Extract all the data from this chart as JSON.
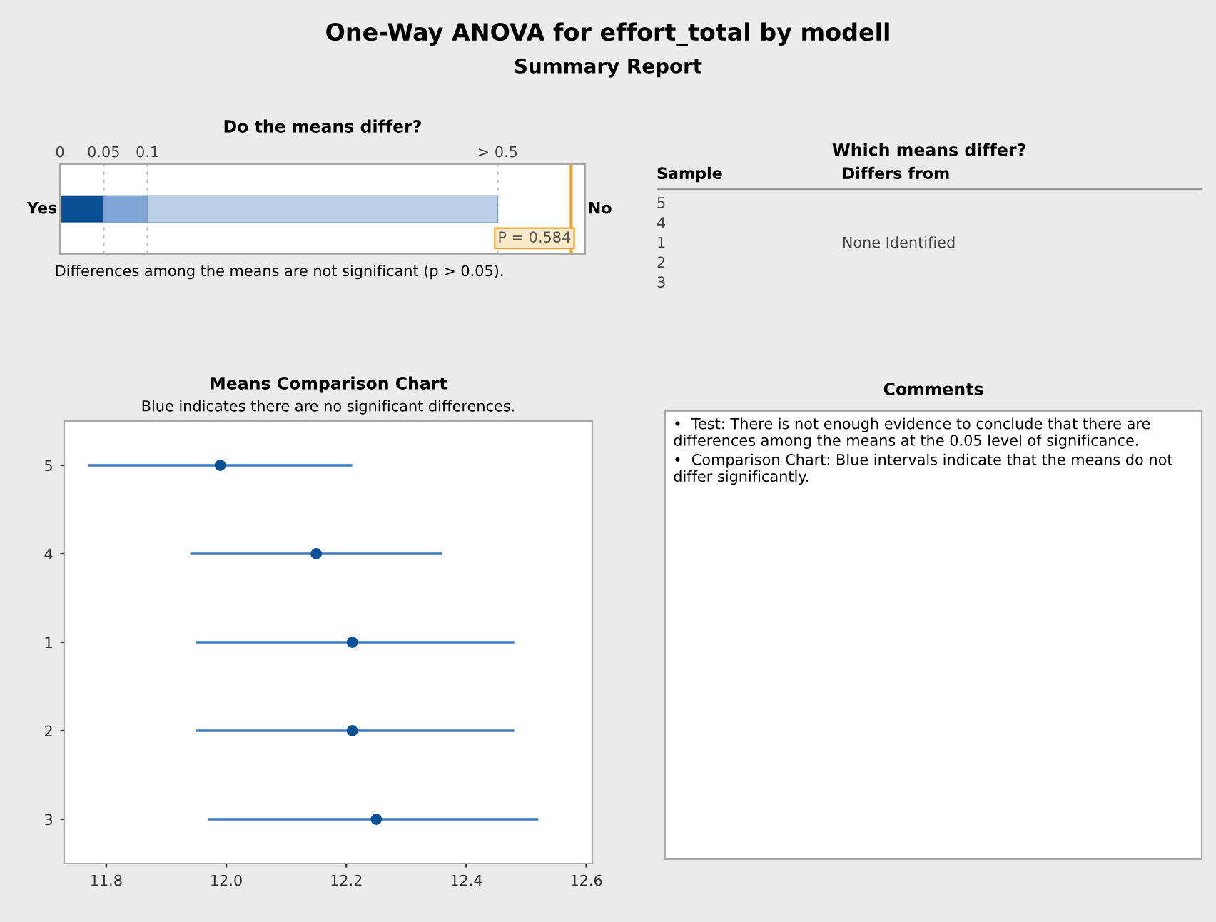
{
  "chart_data": [
    {
      "type": "other",
      "title": "One-Way ANOVA for effort_total by modell",
      "subtitle": "Summary Report"
    },
    {
      "type": "bar",
      "title": "Do the means differ?",
      "orientation": "horizontal",
      "stacked": true,
      "categories": [
        null
      ],
      "series": [
        {
          "color": "#0b4f94",
          "values": [
            0.05
          ]
        },
        {
          "color": "#7fa6d6",
          "values": [
            0.05
          ]
        },
        {
          "color": "#bcd0ea",
          "values": [
            0.4
          ]
        }
      ],
      "xlim": [
        0,
        0.6
      ],
      "xticks": [
        0,
        0.05,
        0.1,
        {
          "value": 0.5,
          "label": "> 0.5"
        }
      ],
      "grid": "x",
      "ref_lines": [
        {
          "axis": "x",
          "value": 0.584,
          "label": "P = 0.584",
          "color": "#f0a030"
        }
      ],
      "annotations": [
        "Yes",
        "No",
        "Differences among the means are not significant (p > 0.05)."
      ]
    },
    {
      "type": "other",
      "title": "Which means differ?",
      "annotations": [
        "Sample",
        "Differs from",
        "5",
        "4",
        "1",
        "2",
        "3",
        "None Identified"
      ]
    },
    {
      "type": "scatter",
      "title": "Means Comparison Chart",
      "subtitle": "Blue indicates there are no significant differences.",
      "orientation": "horizontal",
      "categories": [
        "5",
        "4",
        "1",
        "2",
        "3"
      ],
      "color": "#0b4f94",
      "values": [
        11.99,
        12.15,
        12.21,
        12.21,
        12.25
      ],
      "errors": [
        [
          11.77,
          12.21
        ],
        [
          11.94,
          12.36
        ],
        [
          11.95,
          12.48
        ],
        [
          11.95,
          12.48
        ],
        [
          11.97,
          12.52
        ]
      ],
      "xlim": [
        11.73,
        12.61
      ],
      "xticks": [
        11.8,
        {
          "value": 12.0,
          "label": "12.0"
        },
        12.2,
        12.4,
        12.6
      ],
      "marker": "circle"
    },
    {
      "type": "other",
      "title": "Comments",
      "annotations": [
        "•  Test: There is not enough evidence to conclude that there are differences among the means at the 0.05 level of significance.",
        "•  Comparison Chart: Blue intervals indicate that the means do not differ significantly."
      ]
    }
  ]
}
